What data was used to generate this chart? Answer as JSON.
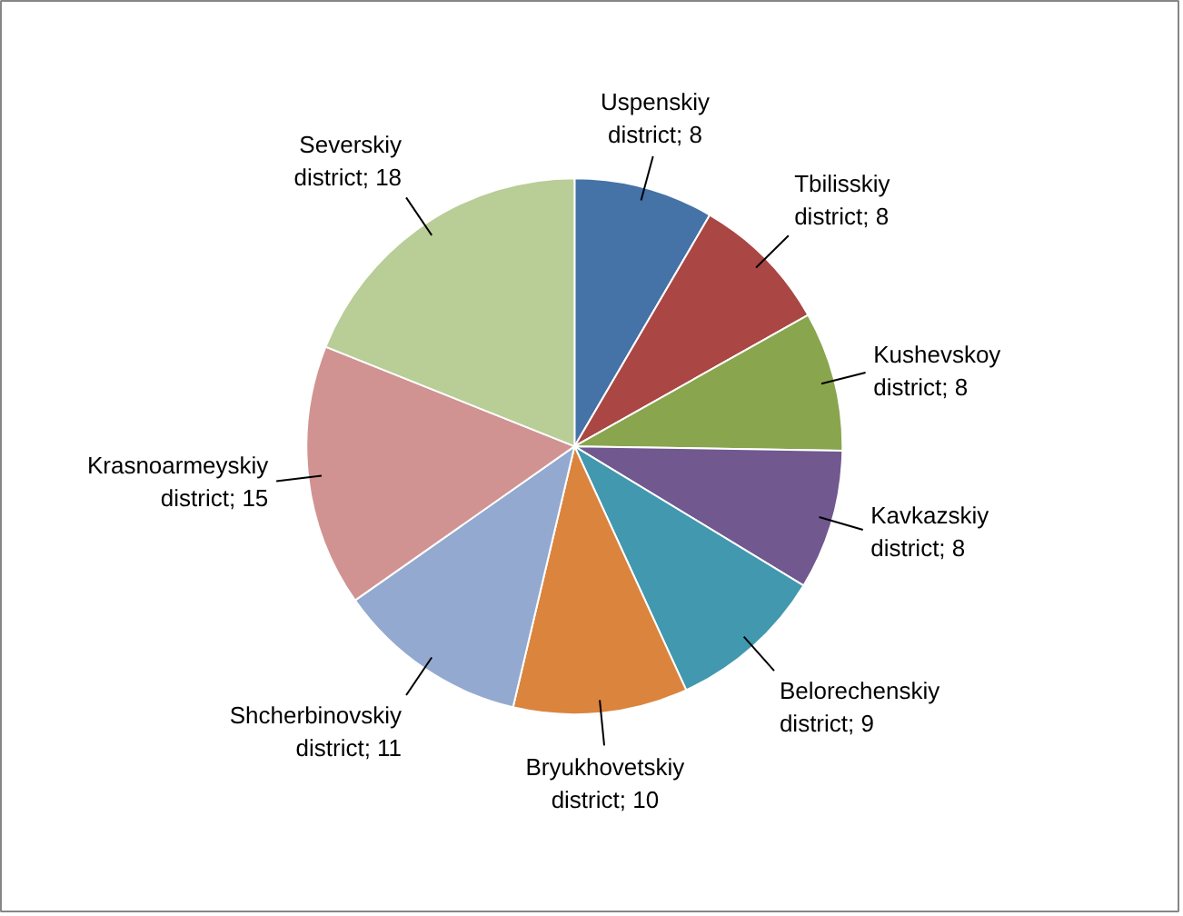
{
  "chart_data": {
    "type": "pie",
    "categories": [
      "Uspenskiy district",
      "Tbilisskiy district",
      "Kushevskoy district",
      "Kavkazskiy district",
      "Belorechenskiy district",
      "Bryukhovetskiy district",
      "Shcherbinovskiy district",
      "Krasnoarmeyskiy district",
      "Severskiy district"
    ],
    "values": [
      8,
      8,
      8,
      8,
      9,
      10,
      11,
      15,
      18
    ],
    "colors": [
      "#4572a7",
      "#aa4643",
      "#89a54e",
      "#71588f",
      "#4198af",
      "#db843d",
      "#93a9cf",
      "#d19392",
      "#b9cd96"
    ],
    "value_labels": [
      "; 8",
      "; 8",
      "; 8",
      "; 8",
      "; 9",
      "; 10",
      "; 11",
      "; 15",
      "; 18"
    ],
    "legend": false
  }
}
